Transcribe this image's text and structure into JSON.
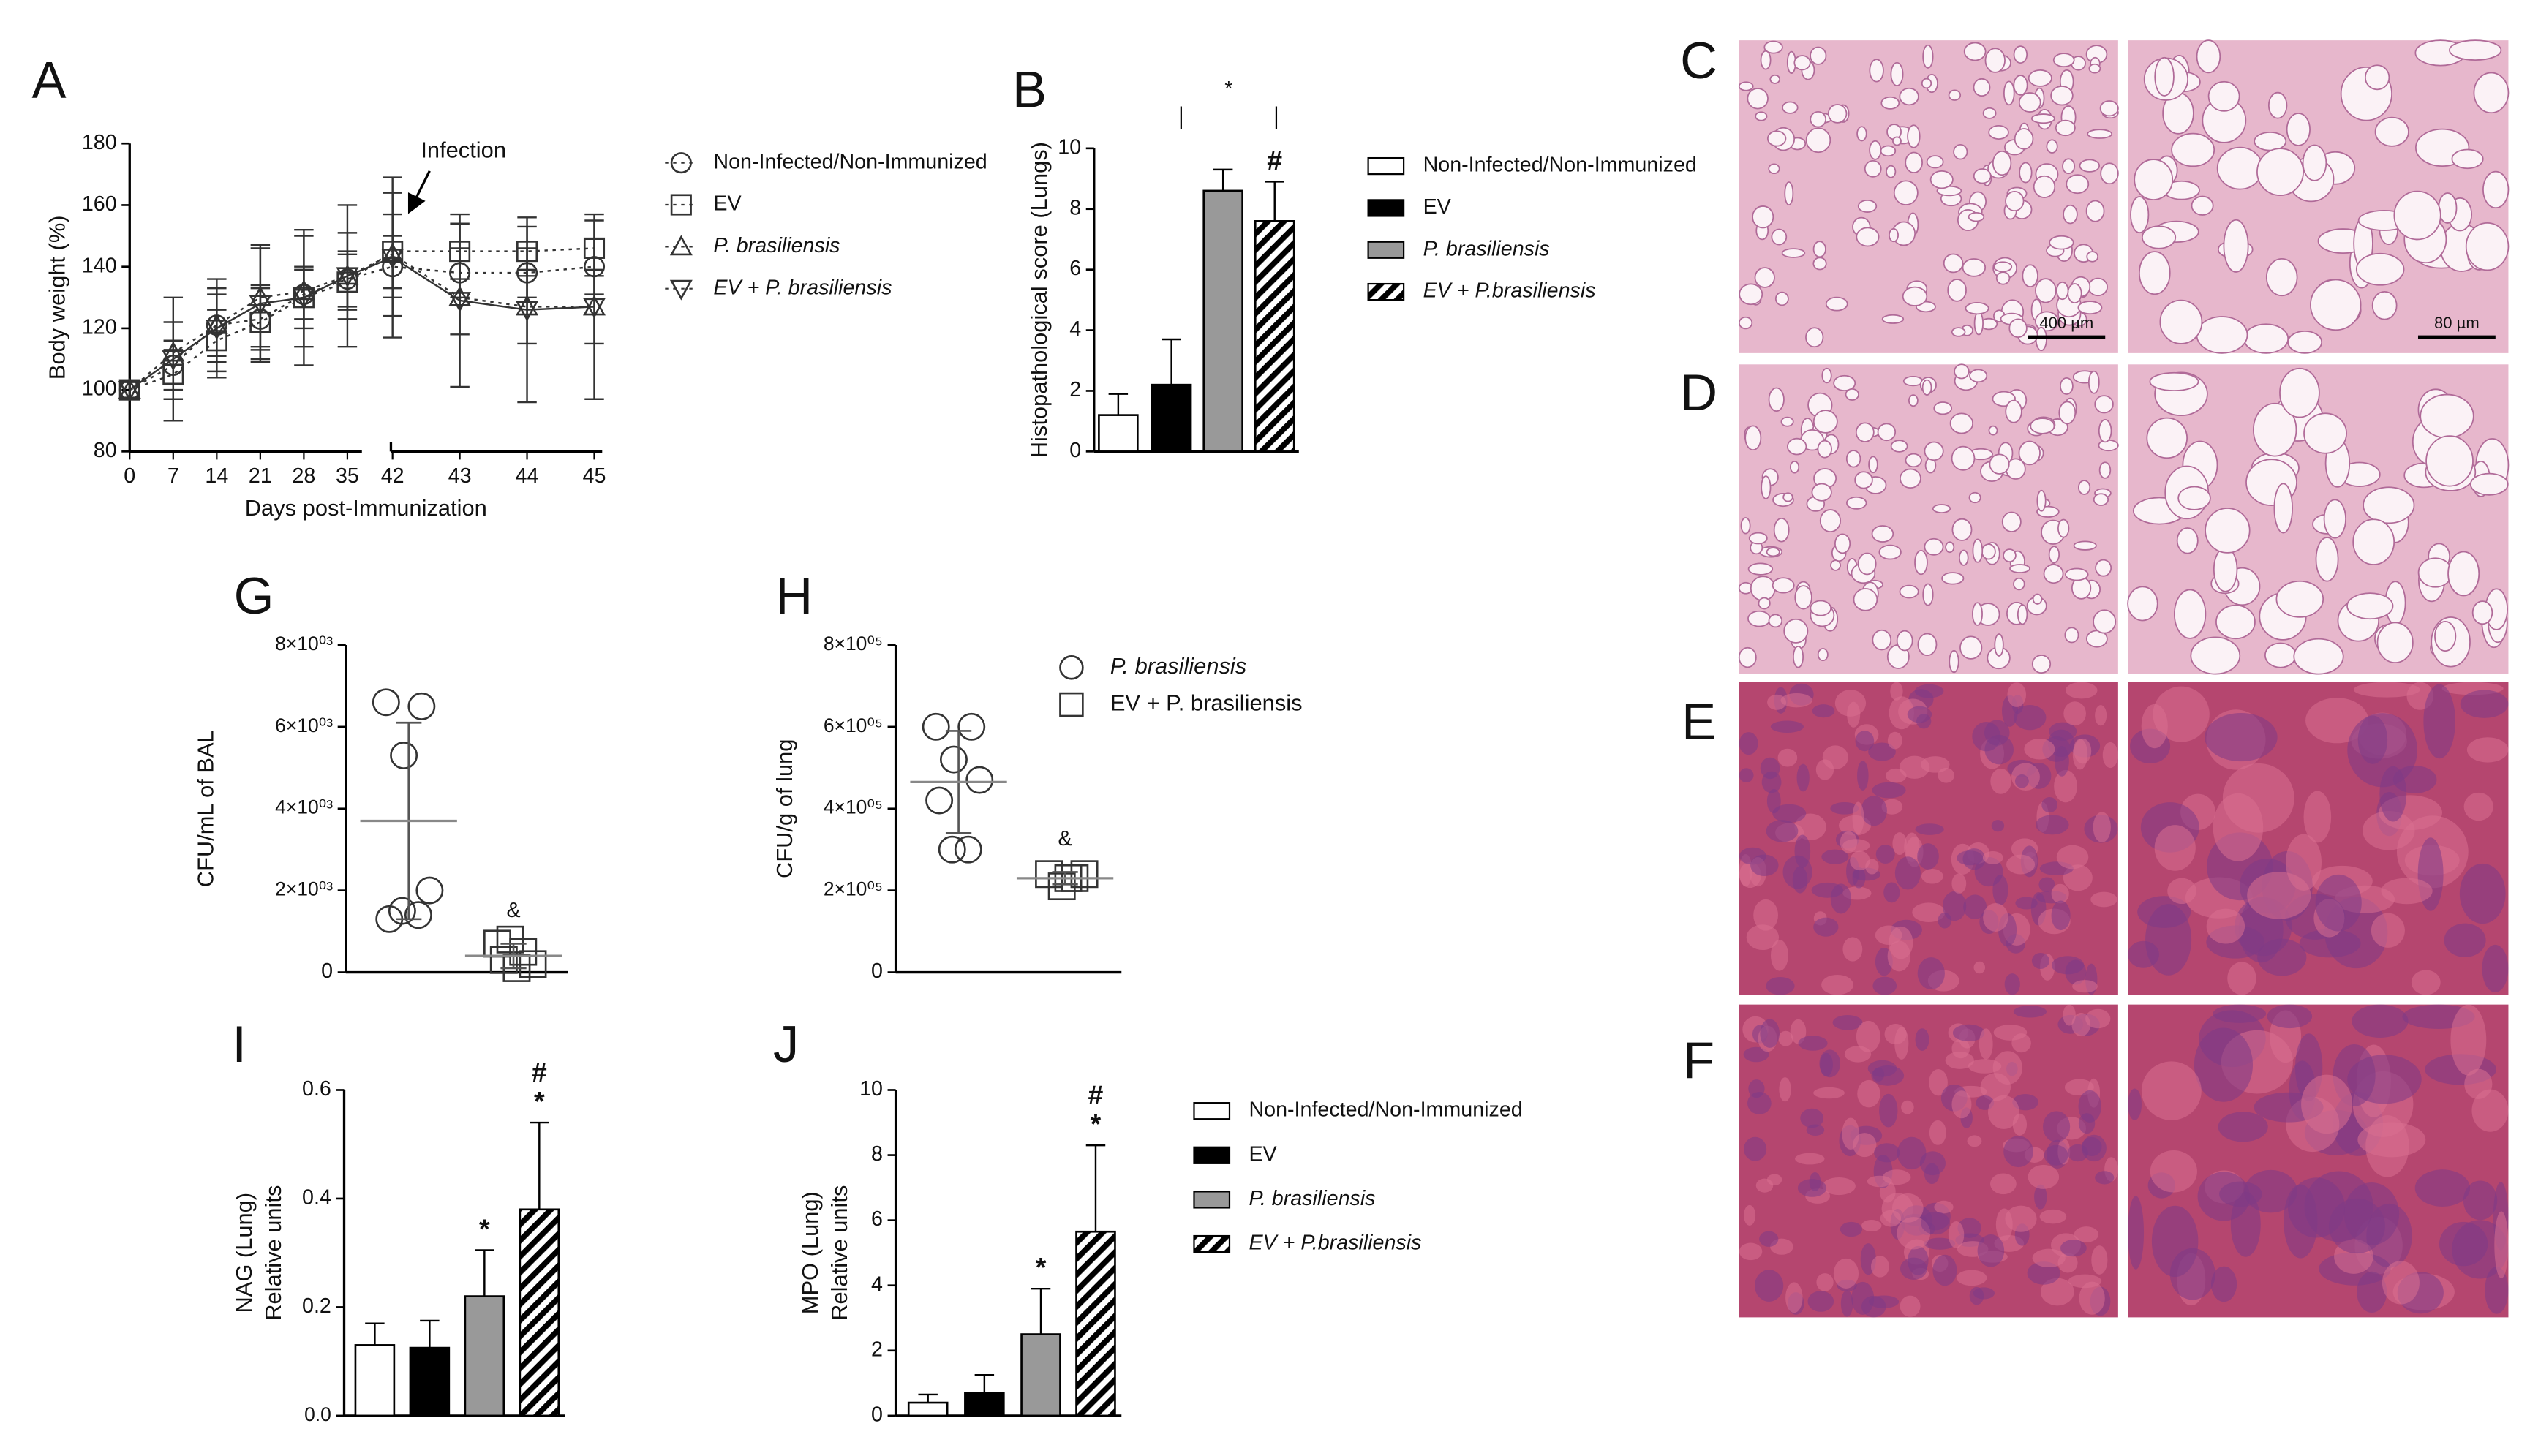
{
  "chart_data": [
    {
      "type": "line",
      "panel_label": "A",
      "xlabel": "Days post-Immunization",
      "ylabel": "Body weight (%)",
      "annotation": "Infection",
      "categories": [
        0,
        7,
        14,
        21,
        28,
        35,
        42,
        43,
        44,
        45
      ],
      "ylim": [
        80,
        180
      ],
      "yticks": [
        80,
        100,
        120,
        140,
        160,
        180
      ],
      "series": [
        {
          "name": "Non-Infected/Non-Immunized",
          "marker": "circle",
          "line_style": "dotted",
          "color": "#333333",
          "values": [
            100,
            108,
            121,
            123,
            131,
            136,
            140,
            138,
            138,
            140
          ],
          "errors": [
            3,
            8,
            10,
            10,
            8,
            9,
            10,
            8,
            8,
            9
          ]
        },
        {
          "name": "EV",
          "marker": "square",
          "line_style": "dotted",
          "color": "#333333",
          "values": [
            100,
            105,
            116,
            122,
            130,
            135,
            145,
            145,
            145,
            146
          ],
          "errors": [
            3,
            8,
            10,
            12,
            10,
            9,
            12,
            9,
            8,
            9
          ]
        },
        {
          "name": "P. brasiliensis",
          "marker": "triangle-up",
          "line_style": "dotted",
          "color": "#333333",
          "values": [
            100,
            112,
            121,
            130,
            132,
            137,
            144,
            130,
            127,
            127
          ],
          "errors": [
            3,
            10,
            12,
            16,
            18,
            14,
            20,
            12,
            12,
            12
          ]
        },
        {
          "name": "EV + P. brasiliensis",
          "marker": "triangle-down",
          "line_style": "solid",
          "color": "#333333",
          "values": [
            100,
            110,
            120,
            128,
            130,
            137,
            143,
            129,
            126,
            127
          ],
          "errors": [
            3,
            20,
            16,
            19,
            22,
            23,
            26,
            28,
            30,
            30
          ]
        }
      ]
    },
    {
      "type": "bar",
      "panel_label": "B",
      "ylabel": "Histopathological score (Lungs)",
      "significance": "*",
      "ylim": [
        0,
        10
      ],
      "yticks": [
        0,
        2,
        4,
        6,
        8,
        10
      ],
      "series": [
        {
          "name": "Non-Infected/Non-Immunized",
          "color": "#ffffff",
          "pattern": "solid",
          "values": [
            1.2
          ],
          "errors": [
            0.7
          ],
          "annotations": []
        },
        {
          "name": "EV",
          "color": "#000000",
          "pattern": "solid",
          "values": [
            2.2
          ],
          "errors": [
            1.5
          ],
          "annotations": []
        },
        {
          "name": "P. brasiliensis",
          "color": "#999999",
          "pattern": "solid",
          "values": [
            8.6
          ],
          "errors": [
            0.7
          ],
          "annotations": []
        },
        {
          "name": "EV + P.brasiliensis",
          "color": "#000000",
          "pattern": "hatch",
          "values": [
            7.6
          ],
          "errors": [
            1.3
          ],
          "annotations": [
            "#"
          ]
        }
      ]
    },
    {
      "type": "dot_plot",
      "panel_label": "G",
      "ylabel": "CFU/mL of BAL",
      "ylim": [
        0,
        8000
      ],
      "yticks": [
        0,
        {
          "value": 2000,
          "label": "2×10⁰³"
        },
        {
          "value": 4000,
          "label": "4×10⁰³"
        },
        {
          "value": 6000,
          "label": "6×10⁰³"
        },
        {
          "value": 8000,
          "label": "8×10⁰³"
        }
      ],
      "series": [
        {
          "marker": "circle",
          "values": [
            6600,
            6500,
            5300,
            2000,
            1300,
            1400,
            1500
          ],
          "mean": 3700,
          "sd": 2400,
          "annotations": []
        },
        {
          "marker": "square",
          "values": [
            700,
            500,
            800,
            200,
            100,
            300
          ],
          "mean": 400,
          "sd": 300,
          "annotations": [
            "&"
          ]
        }
      ]
    },
    {
      "type": "dot_plot",
      "panel_label": "H",
      "ylabel": "CFU/g of  lung",
      "ylim": [
        0,
        800000
      ],
      "yticks": [
        0,
        {
          "value": 200000,
          "label": "2×10⁰⁵"
        },
        {
          "value": 400000,
          "label": "4×10⁰⁵"
        },
        {
          "value": 600000,
          "label": "6×10⁰⁵"
        },
        {
          "value": 800000,
          "label": "8×10⁰⁵"
        }
      ],
      "series": [
        {
          "name": "P. brasiliensis",
          "marker": "circle",
          "values": [
            600000,
            600000,
            520000,
            470000,
            420000,
            300000,
            300000
          ],
          "mean": 465000,
          "sd": 125000,
          "annotations": []
        },
        {
          "name": "EV + P. brasiliensis",
          "marker": "square",
          "values": [
            240000,
            230000,
            210000,
            240000,
            230000
          ],
          "mean": 230000,
          "sd": 15000,
          "annotations": [
            "&"
          ]
        }
      ]
    },
    {
      "type": "bar",
      "panel_label": "I",
      "ylabel": [
        "NAG (Lung)",
        "Relative units"
      ],
      "ylim": [
        0,
        0.6
      ],
      "yticks": [
        {
          "value": 0,
          "label": "0.0"
        },
        0.2,
        0.4,
        0.6
      ],
      "series": [
        {
          "color": "#ffffff",
          "pattern": "solid",
          "values": [
            0.13
          ],
          "errors": [
            0.04
          ],
          "annotations": []
        },
        {
          "color": "#000000",
          "pattern": "solid",
          "values": [
            0.125
          ],
          "errors": [
            0.05
          ],
          "annotations": []
        },
        {
          "color": "#999999",
          "pattern": "solid",
          "values": [
            0.22
          ],
          "errors": [
            0.085
          ],
          "annotations": [
            "*"
          ]
        },
        {
          "color": "#000000",
          "pattern": "hatch",
          "values": [
            0.38
          ],
          "errors": [
            0.16
          ],
          "annotations": [
            "#",
            "*"
          ]
        }
      ]
    },
    {
      "type": "bar",
      "panel_label": "J",
      "ylabel": [
        "MPO (Lung)",
        "Relative units"
      ],
      "ylim": [
        0,
        10
      ],
      "yticks": [
        0,
        2,
        4,
        6,
        8,
        10
      ],
      "series": [
        {
          "name": "Non-Infected/Non-Immunized",
          "color": "#ffffff",
          "pattern": "solid",
          "values": [
            0.4
          ],
          "errors": [
            0.25
          ],
          "annotations": []
        },
        {
          "name": "EV",
          "color": "#000000",
          "pattern": "solid",
          "values": [
            0.7
          ],
          "errors": [
            0.55
          ],
          "annotations": []
        },
        {
          "name": "P. brasiliensis",
          "color": "#999999",
          "pattern": "solid",
          "values": [
            2.5
          ],
          "errors": [
            1.4
          ],
          "annotations": [
            "*"
          ]
        },
        {
          "name": "EV + P.brasiliensis",
          "color": "#000000",
          "pattern": "hatch",
          "values": [
            5.65
          ],
          "errors": [
            2.65
          ],
          "annotations": [
            "#",
            "*"
          ]
        }
      ]
    }
  ],
  "images": [
    {
      "label": "C",
      "scale_bars": [
        "400 µm",
        "80 µm"
      ]
    },
    {
      "label": "D"
    },
    {
      "label": "E"
    },
    {
      "label": "F"
    }
  ]
}
